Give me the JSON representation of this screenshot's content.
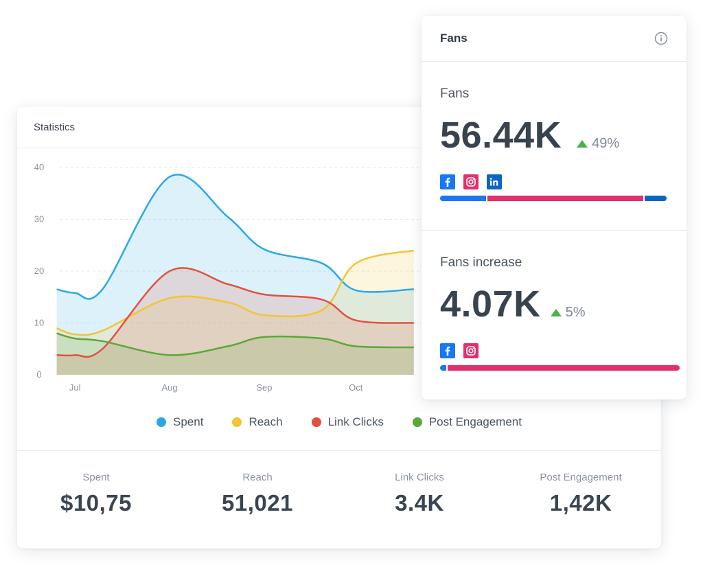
{
  "statistics": {
    "title": "Statistics",
    "summary": [
      {
        "label": "Spent",
        "value": "$10,75"
      },
      {
        "label": "Reach",
        "value": "51,021"
      },
      {
        "label": "Link Clicks",
        "value": "3.4K"
      },
      {
        "label": "Post Engagement",
        "value": "1,42K"
      }
    ]
  },
  "chart_data": {
    "type": "area",
    "x": [
      "Jun 25",
      "Jul 1",
      "Jul 10",
      "Aug 1",
      "Aug 20",
      "Sep 1",
      "Sep 20",
      "Oct 1",
      "Oct 20"
    ],
    "x_tick_labels": [
      "Jul",
      "Aug",
      "Sep",
      "Oct"
    ],
    "y_ticks": [
      0,
      10,
      20,
      30,
      40
    ],
    "ylim": [
      0,
      40
    ],
    "grid": true,
    "legend": "bottom-center",
    "series": [
      {
        "name": "Spent",
        "color": "#29a8e8",
        "values": [
          16.5,
          15.8,
          16.5,
          38.2,
          30.5,
          24.2,
          21.5,
          16.3,
          16.5
        ]
      },
      {
        "name": "Reach",
        "color": "#f4c431",
        "values": [
          9.0,
          7.8,
          8.5,
          14.8,
          14.0,
          11.5,
          12.5,
          21.5,
          24.0
        ]
      },
      {
        "name": "Link Clicks",
        "color": "#e2503f",
        "values": [
          3.8,
          3.8,
          5.0,
          20.0,
          17.5,
          15.5,
          14.5,
          10.5,
          10.0
        ]
      },
      {
        "name": "Post Engagement",
        "color": "#5aa836",
        "values": [
          8.0,
          7.0,
          6.5,
          3.8,
          5.5,
          7.3,
          7.0,
          5.5,
          5.3
        ]
      }
    ]
  },
  "fans": {
    "title": "Fans",
    "total": {
      "label": "Fans",
      "value": "56.44K",
      "delta": "49%",
      "networks": [
        "facebook-icon",
        "instagram-icon",
        "linkedin-icon"
      ],
      "share": [
        {
          "network": "facebook",
          "fraction": 0.205,
          "color": "#1877f2"
        },
        {
          "network": "instagram",
          "fraction": 0.698,
          "color": "#e1306c"
        },
        {
          "network": "linkedin",
          "fraction": 0.097,
          "color": "#0a66c2"
        }
      ]
    },
    "increase": {
      "label": "Fans increase",
      "value": "4.07K",
      "delta": "5%",
      "networks": [
        "facebook-icon",
        "instagram-icon"
      ],
      "share": [
        {
          "network": "facebook",
          "fraction": 0.025,
          "color": "#1877f2"
        },
        {
          "network": "instagram",
          "fraction": 0.975,
          "color": "#e1306c"
        }
      ]
    }
  }
}
